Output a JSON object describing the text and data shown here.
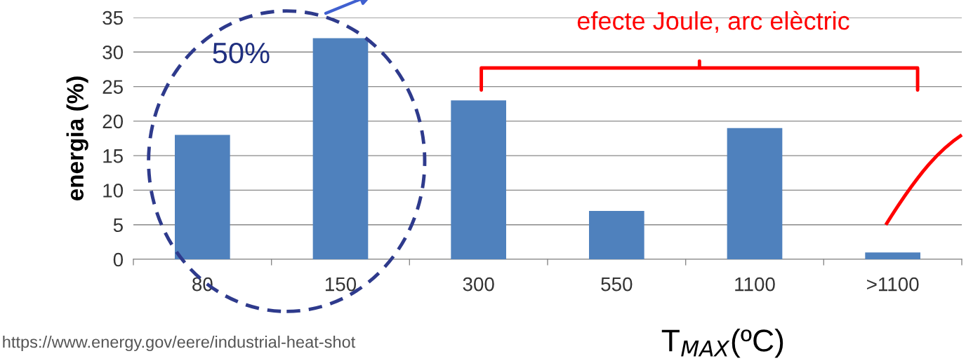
{
  "chart_data": {
    "type": "bar",
    "xlabel": "T$_{MAX}$(ºC)",
    "ylabel": "energia (%)",
    "categories": [
      "80",
      "150",
      "300",
      "550",
      "1100",
      ">1100"
    ],
    "values": [
      18,
      32,
      23,
      7,
      19,
      1
    ],
    "color": "#4f81bd",
    "ylim": [
      0,
      35
    ],
    "yticks": [
      0,
      5,
      10,
      15,
      20,
      25,
      30,
      35
    ],
    "grid": "y",
    "annotations": [
      "50%",
      "efecte Joule, arc elèctric",
      "https://www.energy.gov/eere/industrial-heat-shot"
    ]
  }
}
